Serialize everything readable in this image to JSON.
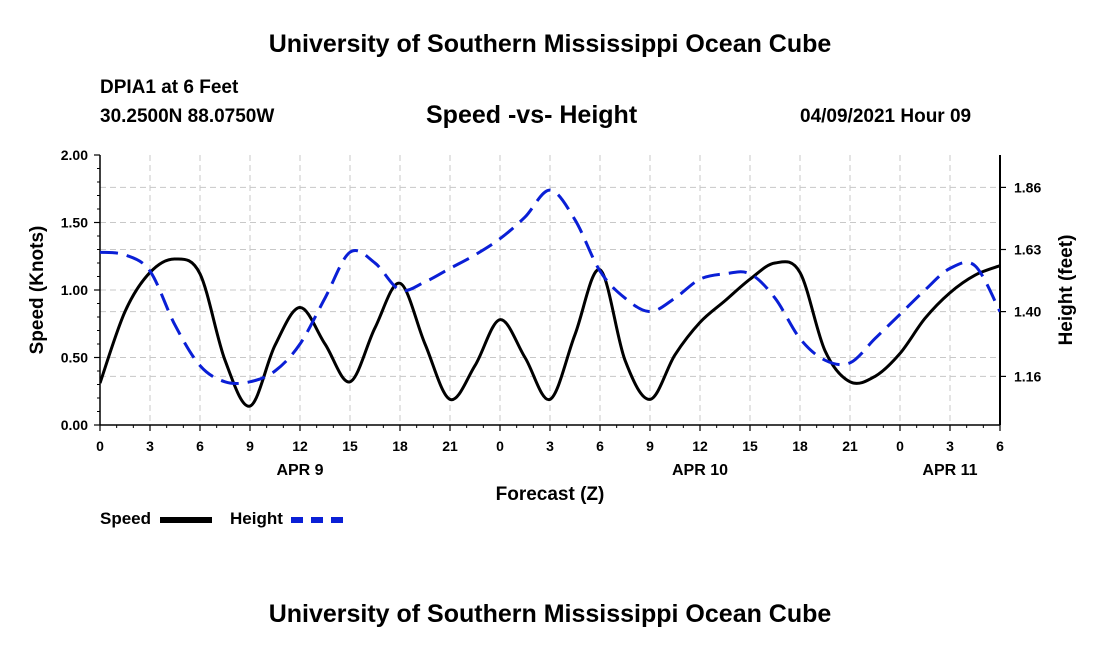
{
  "header": {
    "title": "University of Southern Mississippi Ocean Cube",
    "station": "DPIA1 at 6 Feet",
    "coords": "30.2500N  88.0750W",
    "plot_title": "Speed -vs- Height",
    "datetime": "04/09/2021 Hour 09"
  },
  "footer": {
    "title": "University of Southern Mississippi Ocean Cube"
  },
  "legend": {
    "speed_label": "Speed",
    "height_label": "Height",
    "speed_color": "#000000",
    "height_color": "#0a1fd6"
  },
  "chart_data": {
    "type": "line",
    "title": "Speed -vs- Height",
    "xlabel": "Forecast (Z)",
    "ylabel": "Speed (Knots)",
    "y2label": "Height (feet)",
    "xlim": [
      0,
      54
    ],
    "ylim": [
      0,
      2.0
    ],
    "y2lim": [
      0.98,
      1.98
    ],
    "x_ticks": [
      0,
      3,
      6,
      9,
      12,
      15,
      18,
      21,
      24,
      27,
      30,
      33,
      36,
      39,
      42,
      45,
      48,
      51,
      54
    ],
    "x_tick_labels": [
      "0",
      "3",
      "6",
      "9",
      "12",
      "15",
      "18",
      "21",
      "0",
      "3",
      "6",
      "9",
      "12",
      "15",
      "18",
      "21",
      "0",
      "3",
      "6"
    ],
    "y_ticks": [
      0.0,
      0.5,
      1.0,
      1.5,
      2.0
    ],
    "y_tick_labels": [
      "0.00",
      "0.50",
      "1.00",
      "1.50",
      "2.00"
    ],
    "y2_ticks": [
      1.16,
      1.4,
      1.63,
      1.86
    ],
    "y2_tick_labels": [
      "1.16",
      "1.40",
      "1.63",
      "1.86"
    ],
    "date_labels": [
      {
        "x": 12,
        "label": "APR 9"
      },
      {
        "x": 36,
        "label": "APR 10"
      },
      {
        "x": 51,
        "label": "APR 11"
      }
    ],
    "grid": true,
    "series": [
      {
        "name": "Speed",
        "axis": "left",
        "style": "solid",
        "color": "#000000",
        "x": [
          0,
          1.5,
          3,
          4.5,
          6,
          7.5,
          9,
          10.5,
          12,
          13.5,
          15,
          16.5,
          18,
          19.5,
          21,
          22.5,
          24,
          25.5,
          27,
          28.5,
          30,
          31.5,
          33,
          34.5,
          36,
          37.5,
          39,
          40.5,
          42,
          43.5,
          45,
          46.5,
          48,
          49.5,
          51,
          52.5,
          54
        ],
        "values": [
          0.31,
          0.84,
          1.13,
          1.23,
          1.12,
          0.48,
          0.14,
          0.59,
          0.87,
          0.6,
          0.32,
          0.72,
          1.05,
          0.6,
          0.19,
          0.44,
          0.78,
          0.5,
          0.19,
          0.67,
          1.15,
          0.48,
          0.19,
          0.52,
          0.76,
          0.92,
          1.08,
          1.2,
          1.13,
          0.55,
          0.32,
          0.36,
          0.53,
          0.79,
          0.98,
          1.11,
          1.18
        ]
      },
      {
        "name": "Height",
        "axis": "right",
        "style": "dashed",
        "color": "#0a1fd6",
        "x": [
          0,
          1.5,
          3,
          4.5,
          6,
          7.5,
          9,
          10.5,
          12,
          13.5,
          15,
          16.5,
          18,
          19.5,
          21,
          22.5,
          24,
          25.5,
          27,
          28.5,
          30,
          31.5,
          33,
          34.5,
          36,
          37.5,
          39,
          40.5,
          42,
          43.5,
          45,
          46.5,
          48,
          49.5,
          51,
          52.5,
          54
        ],
        "values": [
          1.62,
          1.61,
          1.55,
          1.35,
          1.2,
          1.14,
          1.14,
          1.18,
          1.28,
          1.45,
          1.62,
          1.58,
          1.48,
          1.51,
          1.56,
          1.61,
          1.67,
          1.75,
          1.85,
          1.74,
          1.55,
          1.45,
          1.4,
          1.45,
          1.52,
          1.54,
          1.54,
          1.45,
          1.3,
          1.22,
          1.21,
          1.3,
          1.39,
          1.48,
          1.56,
          1.57,
          1.4
        ]
      }
    ]
  }
}
